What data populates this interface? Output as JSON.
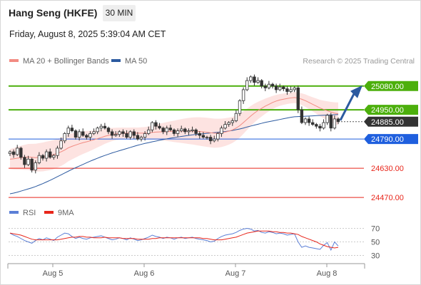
{
  "header": {
    "instrument": "Hang Seng (HKFE)",
    "timeframe": "30 MIN",
    "datetime": "Friday, August 8, 2025 5:39:04 AM CET"
  },
  "legend": {
    "ma20": {
      "label": "MA 20 + Bollinger Bands",
      "color": "#f28b82"
    },
    "ma50": {
      "label": "MA 50",
      "color": "#2c5aa0"
    }
  },
  "credit": "Research © 2025 Trading Central",
  "rsi_legend": {
    "rsi": {
      "label": "RSI",
      "color": "#5b7fd6"
    },
    "ma9": {
      "label": "9MA",
      "color": "#e8261b"
    }
  },
  "chart_data": {
    "type": "candlestick",
    "x_labels": [
      "Aug 5",
      "Aug 6",
      "Aug 7",
      "Aug 8"
    ],
    "y_range": [
      24420,
      25200
    ],
    "last_price": 24885,
    "levels": [
      {
        "value": 25080,
        "label": "25080.00",
        "role": "target",
        "color": "#4caf0c"
      },
      {
        "value": 24950,
        "label": "24950.00",
        "role": "resistance",
        "color": "#4caf0c"
      },
      {
        "value": 24885,
        "label": "24885.00",
        "role": "last",
        "color": "#333333"
      },
      {
        "value": 24790,
        "label": "24790.00",
        "role": "pivot",
        "color": "#1f5fde"
      },
      {
        "value": 24630,
        "label": "24630.00",
        "role": "support",
        "color": "#e8261b"
      },
      {
        "value": 24470,
        "label": "24470.00",
        "role": "support",
        "color": "#e8261b"
      }
    ],
    "closes": [
      24720,
      24705,
      24740,
      24690,
      24650,
      24680,
      24620,
      24660,
      24700,
      24685,
      24720,
      24690,
      24700,
      24740,
      24780,
      24820,
      24850,
      24835,
      24800,
      24830,
      24810,
      24800,
      24820,
      24830,
      24850,
      24860,
      24850,
      24830,
      24810,
      24815,
      24830,
      24820,
      24800,
      24830,
      24810,
      24790,
      24800,
      24820,
      24840,
      24880,
      24860,
      24850,
      24830,
      24850,
      24840,
      24820,
      24835,
      24845,
      24830,
      24835,
      24840,
      24820,
      24810,
      24800,
      24800,
      24780,
      24790,
      24820,
      24850,
      24870,
      24880,
      24890,
      24930,
      25000,
      25060,
      25110,
      25130,
      25100,
      25110,
      25080,
      25070,
      25090,
      25080,
      25060,
      25075,
      25065,
      25050,
      25060,
      25070,
      24950,
      24880,
      24900,
      24880,
      24870,
      24860,
      24850,
      24880,
      24920,
      24850,
      24900,
      24885
    ],
    "ma20": [
      24680,
      24682,
      24685,
      24688,
      24690,
      24692,
      24690,
      24688,
      24690,
      24692,
      24696,
      24700,
      24705,
      24712,
      24720,
      24730,
      24742,
      24750,
      24757,
      24764,
      24770,
      24775,
      24780,
      24786,
      24792,
      24798,
      24805,
      24810,
      24815,
      24818,
      24820,
      24822,
      24822,
      24823,
      24823,
      24822,
      24822,
      24822,
      24823,
      24826,
      24828,
      24829,
      24830,
      24831,
      24832,
      24832,
      24833,
      24834,
      24834,
      24834,
      24834,
      24833,
      24831,
      24829,
      24827,
      24824,
      24822,
      24822,
      24824,
      24828,
      24833,
      24840,
      24850,
      24863,
      24880,
      24898,
      24916,
      24932,
      24946,
      24958,
      24970,
      24980,
      24990,
      24998,
      25004,
      25008,
      25012,
      25015,
      25017,
      25014,
      25008,
      25000,
      24990,
      24980,
      24970,
      24960,
      24952,
      24945,
      24938,
      24932,
      24928
    ],
    "ma50": [
      24490,
      24494,
      24499,
      24505,
      24511,
      24517,
      24523,
      24530,
      24538,
      24546,
      24555,
      24564,
      24574,
      24584,
      24594,
      24604,
      24614,
      24624,
      24633,
      24642,
      24651,
      24660,
      24669,
      24677,
      24685,
      24693,
      24700,
      24707,
      24714,
      24720,
      24726,
      24732,
      24738,
      24744,
      24750,
      24756,
      24761,
      24766,
      24770,
      24775,
      24779,
      24783,
      24787,
      24791,
      24795,
      24798,
      24801,
      24804,
      24807,
      24810,
      24813,
      24815,
      24817,
      24819,
      24821,
      24823,
      24825,
      24827,
      24829,
      24831,
      24834,
      24837,
      24841,
      24845,
      24850,
      24856,
      24861,
      24866,
      24871,
      24876,
      24881,
      24885,
      24889,
      24893,
      24897,
      24901,
      24905,
      24909,
      24912,
      24913,
      24914,
      24915,
      24916,
      24917,
      24918,
      24919,
      24920,
      24921,
      24922,
      24923,
      24924
    ],
    "rsi_panel": {
      "ticks": [
        70,
        50,
        30
      ],
      "range": [
        20,
        80
      ],
      "rsi": [
        63,
        60,
        58,
        55,
        52,
        50,
        48,
        52,
        55,
        53,
        56,
        54,
        52,
        57,
        60,
        63,
        62,
        58,
        55,
        57,
        55,
        54,
        56,
        57,
        58,
        59,
        57,
        55,
        53,
        54,
        56,
        55,
        53,
        56,
        54,
        52,
        53,
        55,
        57,
        60,
        58,
        57,
        55,
        57,
        56,
        54,
        56,
        57,
        55,
        56,
        57,
        55,
        54,
        53,
        52,
        50,
        51,
        55,
        58,
        60,
        61,
        62,
        64,
        67,
        69,
        70,
        69,
        66,
        67,
        64,
        63,
        65,
        64,
        62,
        63,
        62,
        60,
        61,
        62,
        50,
        42,
        44,
        42,
        41,
        40,
        39,
        45,
        49,
        38,
        50,
        44
      ],
      "ma9": [
        63,
        62,
        61,
        60,
        58,
        56,
        54,
        53,
        53,
        53,
        53,
        53,
        53,
        53,
        54,
        55,
        56,
        57,
        57,
        58,
        58,
        57,
        57,
        56,
        56,
        56,
        57,
        56,
        56,
        56,
        56,
        55,
        55,
        55,
        55,
        54,
        54,
        54,
        54,
        55,
        55,
        56,
        56,
        56,
        56,
        56,
        56,
        56,
        56,
        56,
        56,
        56,
        56,
        55,
        55,
        54,
        53,
        53,
        53,
        54,
        55,
        56,
        57,
        59,
        61,
        63,
        64,
        65,
        66,
        66,
        66,
        66,
        65,
        65,
        64,
        64,
        63,
        63,
        62,
        61,
        58,
        56,
        54,
        52,
        50,
        47,
        45,
        43,
        42,
        41,
        42
      ]
    }
  }
}
